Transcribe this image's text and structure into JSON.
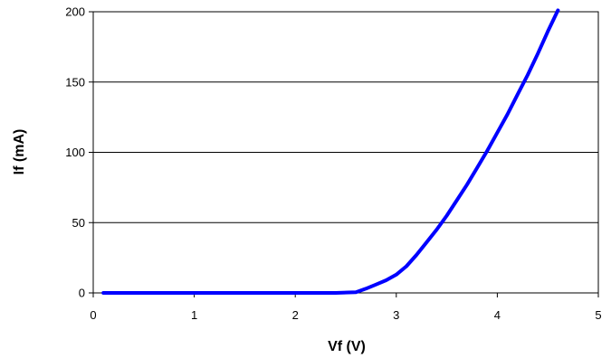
{
  "chart_data": {
    "type": "line",
    "title": "",
    "xlabel": "Vf (V)",
    "ylabel": "If (mA)",
    "xlim": [
      0,
      5
    ],
    "ylim": [
      0,
      200
    ],
    "x_ticks": [
      0,
      1,
      2,
      3,
      4,
      5
    ],
    "y_ticks": [
      0,
      50,
      100,
      150,
      200
    ],
    "x_tick_labels": [
      "0",
      "1",
      "2",
      "3",
      "4",
      "5"
    ],
    "y_tick_labels": [
      "0",
      "50",
      "100",
      "150",
      "200"
    ],
    "grid": "horizontal",
    "legend": "none",
    "series": [
      {
        "color": "#0000ff",
        "x": [
          0.1,
          0.5,
          1.0,
          1.5,
          2.0,
          2.4,
          2.6,
          2.7,
          2.8,
          2.9,
          3.0,
          3.1,
          3.2,
          3.3,
          3.4,
          3.5,
          3.6,
          3.7,
          3.8,
          3.9,
          4.0,
          4.1,
          4.2,
          4.3,
          4.4,
          4.5,
          4.6
        ],
        "y": [
          0,
          0,
          0,
          0,
          0,
          0,
          0.5,
          3,
          6,
          9,
          13,
          19,
          27,
          36,
          45,
          55,
          66,
          77,
          89,
          101,
          114,
          127,
          141,
          155,
          170,
          186,
          201
        ]
      }
    ]
  }
}
